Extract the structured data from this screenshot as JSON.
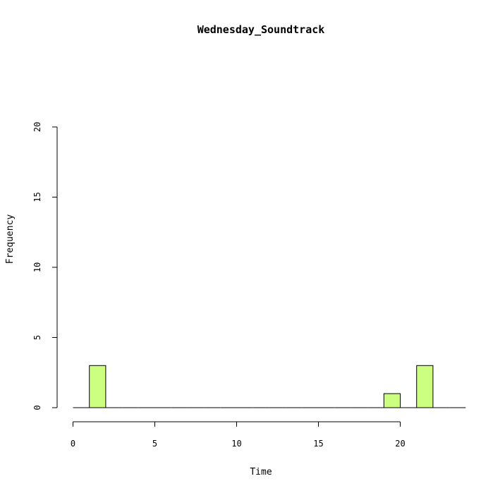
{
  "chart_data": {
    "type": "bar",
    "title": "Wednesday_Soundtrack",
    "xlabel": "Time",
    "ylabel": "Frequency",
    "xlim": [
      0,
      24
    ],
    "ylim": [
      0,
      20
    ],
    "xticks": [
      0,
      5,
      10,
      15,
      20
    ],
    "yticks": [
      0,
      5,
      10,
      15,
      20
    ],
    "bin_width": 1,
    "bins": [
      {
        "start": 0,
        "count": 0
      },
      {
        "start": 1,
        "count": 3
      },
      {
        "start": 2,
        "count": 0
      },
      {
        "start": 3,
        "count": 0
      },
      {
        "start": 4,
        "count": 0
      },
      {
        "start": 5,
        "count": 0
      },
      {
        "start": 6,
        "count": 0
      },
      {
        "start": 7,
        "count": 0
      },
      {
        "start": 8,
        "count": 0
      },
      {
        "start": 9,
        "count": 0
      },
      {
        "start": 10,
        "count": 0
      },
      {
        "start": 11,
        "count": 0
      },
      {
        "start": 12,
        "count": 0
      },
      {
        "start": 13,
        "count": 0
      },
      {
        "start": 14,
        "count": 0
      },
      {
        "start": 15,
        "count": 0
      },
      {
        "start": 16,
        "count": 0
      },
      {
        "start": 17,
        "count": 0
      },
      {
        "start": 18,
        "count": 0
      },
      {
        "start": 19,
        "count": 1
      },
      {
        "start": 20,
        "count": 0
      },
      {
        "start": 21,
        "count": 3
      },
      {
        "start": 22,
        "count": 0
      },
      {
        "start": 23,
        "count": 0
      }
    ],
    "bar_color": "#CCFF80",
    "grid": false,
    "legend": "none"
  }
}
